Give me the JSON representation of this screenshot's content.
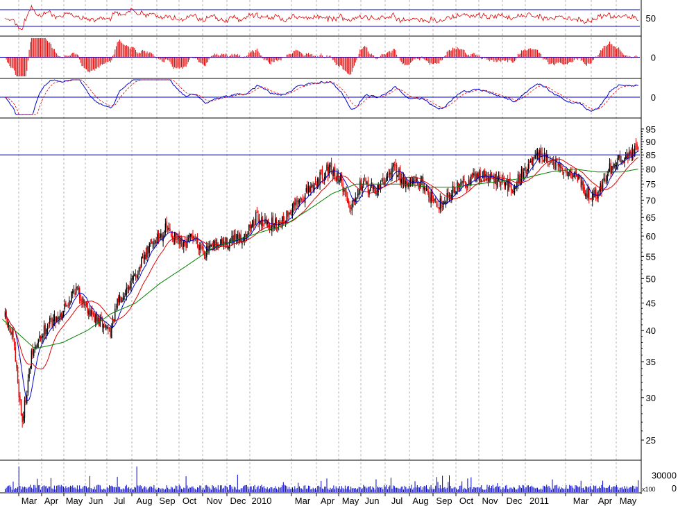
{
  "chart_data": {
    "type": "candlestick",
    "colors": {
      "up": "#000000",
      "down": "#e00000",
      "ma_fast": "#0000cc",
      "ma_mid": "#e00000",
      "ma_slow": "#008000",
      "reference_line": "#0000cc",
      "volume": "#0000cc",
      "grid": "#b4b4b4"
    },
    "x_axis": {
      "labels": [
        "Mar",
        "Apr",
        "May",
        "Jun",
        "Jul",
        "Aug",
        "Sep",
        "Oct",
        "Nov",
        "Dec",
        "2010",
        "Mar",
        "Apr",
        "May",
        "Jun",
        "Jul",
        "Aug",
        "Sep",
        "Oct",
        "Nov",
        "Dec",
        "2011",
        "Mar",
        "Apr",
        "May"
      ]
    },
    "panels": {
      "rsi": {
        "ticks": [
          "50"
        ],
        "levels": [
          70,
          30
        ],
        "ylim": [
          15,
          85
        ]
      },
      "histogram": {
        "ticks": [
          "0"
        ],
        "ylim": [
          -3,
          3
        ]
      },
      "macd": {
        "ticks": [
          "0"
        ],
        "ylim": [
          -4,
          4
        ]
      },
      "price": {
        "ticks": [
          "95",
          "90",
          "85",
          "80",
          "75",
          "70",
          "65",
          "60",
          "55",
          "50",
          "45",
          "40",
          "35",
          "30",
          "25"
        ],
        "scale": "log",
        "ylim": [
          23,
          99
        ],
        "reference_level": 85
      },
      "volume": {
        "ticks": [
          "30000",
          "0"
        ],
        "multiplier_label": "x100",
        "ylim": [
          0,
          55000
        ]
      }
    },
    "price_path": {
      "x": [
        "2009-02-23",
        "2009-03-09",
        "2009-03-20",
        "2009-04-01",
        "2009-04-20",
        "2009-05-08",
        "2009-05-26",
        "2009-06-20",
        "2009-07-10",
        "2009-07-20",
        "2009-08-08",
        "2009-08-30",
        "2009-09-18",
        "2009-10-08",
        "2009-10-22",
        "2009-11-06",
        "2009-11-26",
        "2009-12-20",
        "2010-01-10",
        "2010-01-25",
        "2010-02-10",
        "2010-03-10",
        "2010-04-08",
        "2010-04-25",
        "2010-05-07",
        "2010-05-20",
        "2010-06-10",
        "2010-07-01",
        "2010-07-20",
        "2010-08-05",
        "2010-08-25",
        "2010-09-10",
        "2010-10-01",
        "2010-10-20",
        "2010-11-10",
        "2010-11-28",
        "2010-12-15",
        "2011-01-03",
        "2011-01-15",
        "2011-01-31",
        "2011-02-18",
        "2011-03-03",
        "2011-03-16",
        "2011-03-31",
        "2011-04-15",
        "2011-04-30",
        "2011-05-06"
      ],
      "close": [
        44,
        38,
        27,
        36,
        41,
        43,
        48,
        42,
        40,
        46,
        50,
        58,
        62,
        57,
        60,
        56,
        58,
        59,
        65,
        63,
        64,
        71,
        80,
        77,
        68,
        75,
        73,
        80,
        75,
        76,
        68,
        72,
        76,
        78,
        76,
        74,
        80,
        85,
        82,
        80,
        78,
        72,
        72,
        80,
        84,
        86,
        88
      ]
    },
    "moving_average_slow": {
      "x": [
        "2009-02-23",
        "2009-04-05",
        "2009-05-10",
        "2009-06-10",
        "2009-07-10",
        "2009-08-10",
        "2009-09-10",
        "2009-10-15",
        "2009-11-15",
        "2009-12-15",
        "2010-01-15",
        "2010-02-15",
        "2010-03-15",
        "2010-04-15",
        "2010-05-15",
        "2010-06-15",
        "2010-07-15",
        "2010-08-15",
        "2010-09-15",
        "2010-10-15",
        "2010-11-15",
        "2010-12-15",
        "2011-01-15",
        "2011-02-15",
        "2011-03-15",
        "2011-04-15",
        "2011-05-06"
      ],
      "values": [
        42,
        37,
        38,
        40,
        43,
        45,
        49,
        53,
        57,
        59,
        61,
        63,
        67,
        72,
        75,
        75,
        75,
        74,
        74,
        75,
        76,
        77,
        79,
        80,
        79,
        79,
        80
      ]
    }
  }
}
